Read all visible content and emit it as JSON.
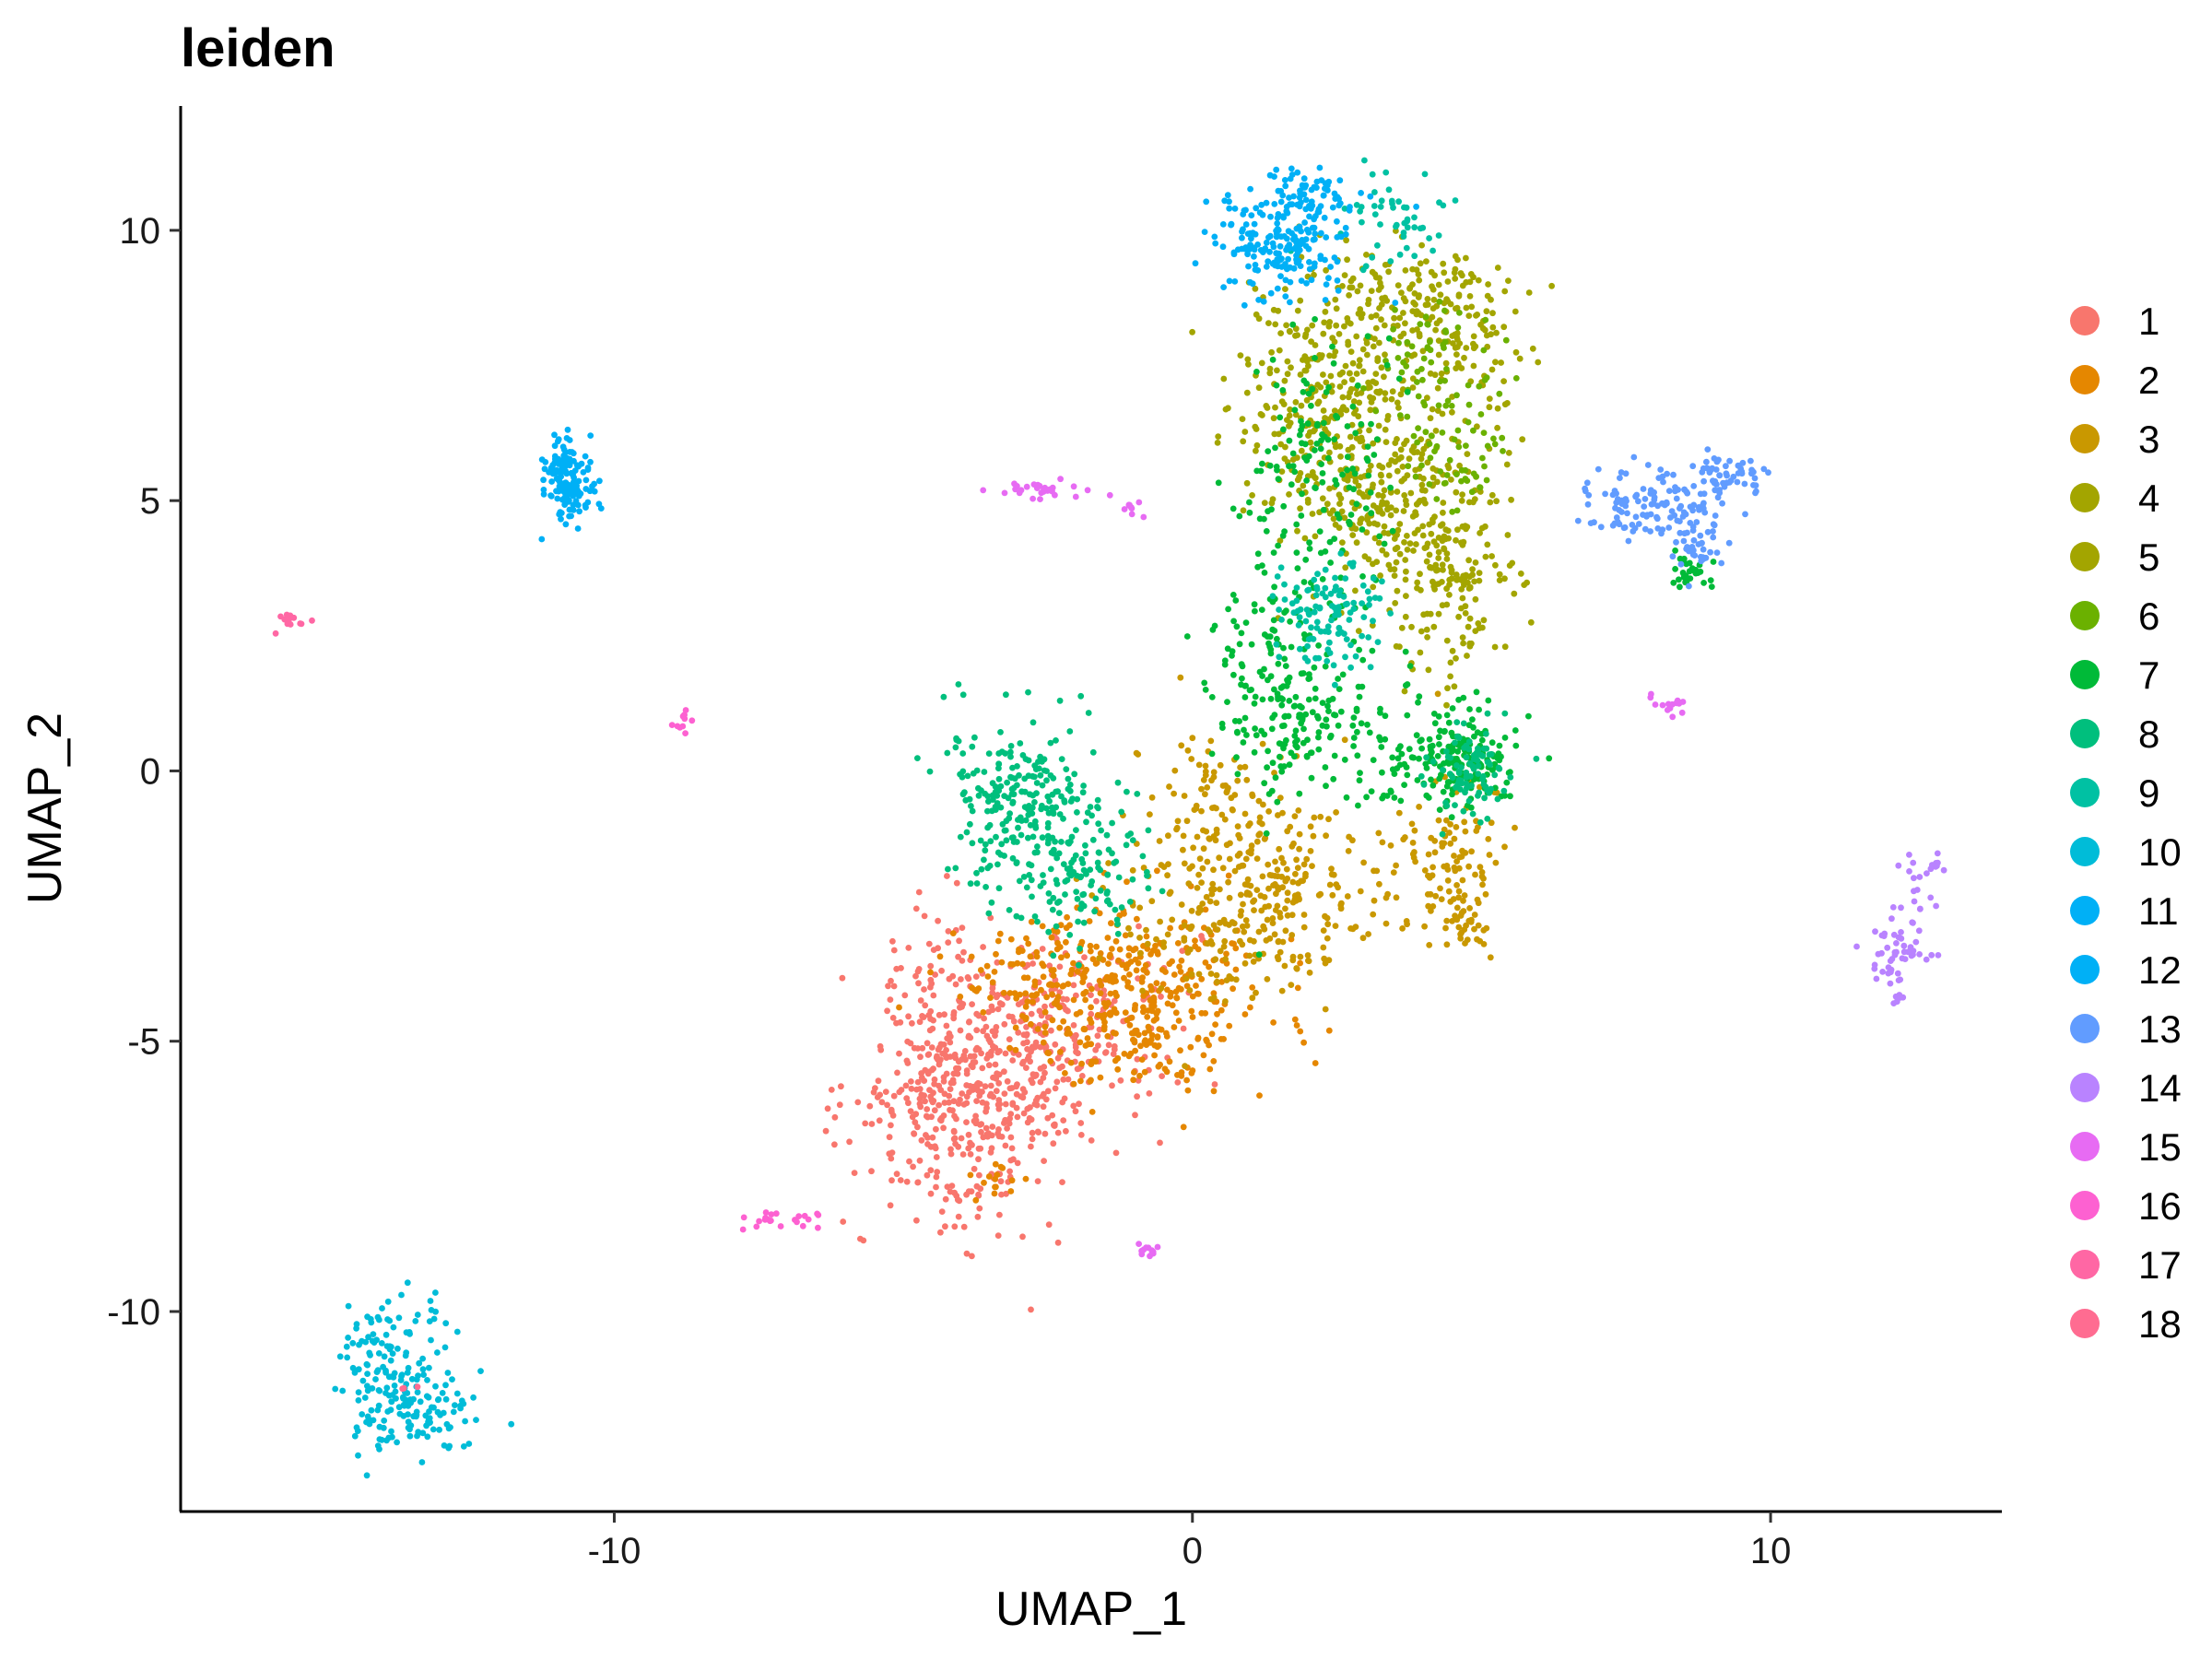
{
  "chart_data": {
    "type": "scatter",
    "title": "leiden",
    "xlabel": "UMAP_1",
    "ylabel": "UMAP_2",
    "xlim": [
      -17.5,
      14
    ],
    "ylim": [
      -13.7,
      12.3
    ],
    "xticks": [
      -10,
      0,
      10
    ],
    "xtick_labels": [
      "-10",
      "0",
      "10"
    ],
    "yticks": [
      -10,
      -5,
      0,
      5,
      10
    ],
    "ytick_labels": [
      "-10",
      "-5",
      "0",
      "5",
      "10"
    ],
    "grid": false,
    "legend_position": "right",
    "series": [
      {
        "name": "1",
        "color": "#F8766D",
        "clusters": [
          {
            "cx": -4.0,
            "cy": -6.3,
            "sx": 0.9,
            "sy": 1.0,
            "n": 360
          },
          {
            "cx": -2.6,
            "cy": -4.9,
            "sx": 1.1,
            "sy": 0.9,
            "n": 300
          },
          {
            "cx": -4.6,
            "cy": -4.2,
            "sx": 0.35,
            "sy": 0.9,
            "n": 60
          }
        ]
      },
      {
        "name": "2",
        "color": "#E58700",
        "clusters": [
          {
            "cx": -0.9,
            "cy": -4.2,
            "sx": 1.1,
            "sy": 0.9,
            "n": 320
          },
          {
            "cx": -2.4,
            "cy": -3.8,
            "sx": 1.0,
            "sy": 0.5,
            "n": 120
          },
          {
            "cx": -3.3,
            "cy": -7.6,
            "sx": 0.25,
            "sy": 0.2,
            "n": 15
          }
        ]
      },
      {
        "name": "3",
        "color": "#C99800",
        "clusters": [
          {
            "cx": 1.1,
            "cy": -2.4,
            "sx": 1.1,
            "sy": 0.9,
            "n": 320
          },
          {
            "cx": 0.4,
            "cy": -0.5,
            "sx": 0.6,
            "sy": 0.7,
            "n": 80
          },
          {
            "cx": 4.5,
            "cy": -1.6,
            "sx": 0.45,
            "sy": 0.8,
            "n": 110
          },
          {
            "cx": 4.7,
            "cy": -2.9,
            "sx": 0.2,
            "sy": 0.2,
            "n": 20
          }
        ]
      },
      {
        "name": "4",
        "color": "#A3A500",
        "clusters": [
          {
            "cx": 2.5,
            "cy": 7.2,
            "sx": 0.9,
            "sy": 1.0,
            "n": 280
          },
          {
            "cx": 3.8,
            "cy": 8.6,
            "sx": 0.8,
            "sy": 0.5,
            "n": 150
          }
        ]
      },
      {
        "name": "5",
        "color": "#A3A500",
        "clusters": [
          {
            "cx": 3.2,
            "cy": 5.1,
            "sx": 0.9,
            "sy": 0.8,
            "n": 250
          },
          {
            "cx": 4.4,
            "cy": 3.4,
            "sx": 0.6,
            "sy": 0.9,
            "n": 170
          },
          {
            "cx": 4.9,
            "cy": 7.8,
            "sx": 0.4,
            "sy": 0.8,
            "n": 60
          }
        ]
      },
      {
        "name": "6",
        "color": "#6BB100",
        "clusters": [
          {
            "cx": 4.2,
            "cy": 7.6,
            "sx": 0.5,
            "sy": 0.6,
            "n": 60
          },
          {
            "cx": 4.6,
            "cy": 5.8,
            "sx": 0.4,
            "sy": 0.5,
            "n": 50
          }
        ]
      },
      {
        "name": "7",
        "color": "#00BA38",
        "clusters": [
          {
            "cx": 1.5,
            "cy": 1.4,
            "sx": 0.6,
            "sy": 1.0,
            "n": 200
          },
          {
            "cx": 2.2,
            "cy": 5.4,
            "sx": 0.6,
            "sy": 1.2,
            "n": 160
          },
          {
            "cx": 4.6,
            "cy": 0.2,
            "sx": 0.5,
            "sy": 0.5,
            "n": 160
          },
          {
            "cx": 8.6,
            "cy": 3.7,
            "sx": 0.2,
            "sy": 0.15,
            "n": 30
          },
          {
            "cx": 3.1,
            "cy": 0.5,
            "sx": 0.6,
            "sy": 0.6,
            "n": 60
          }
        ]
      },
      {
        "name": "8",
        "color": "#00BF7D",
        "clusters": [
          {
            "cx": -2.9,
            "cy": -0.6,
            "sx": 0.7,
            "sy": 0.8,
            "n": 240
          },
          {
            "cx": -1.9,
            "cy": -2.0,
            "sx": 0.6,
            "sy": 0.6,
            "n": 110
          },
          {
            "cx": 4.8,
            "cy": -0.1,
            "sx": 0.3,
            "sy": 0.4,
            "n": 90
          }
        ]
      },
      {
        "name": "9",
        "color": "#00C1A3",
        "clusters": [
          {
            "cx": 2.4,
            "cy": 3.0,
            "sx": 0.5,
            "sy": 0.5,
            "n": 110
          },
          {
            "cx": 3.4,
            "cy": 10.3,
            "sx": 0.5,
            "sy": 0.4,
            "n": 50
          }
        ]
      },
      {
        "name": "10",
        "color": "#00BCD8",
        "clusters": [
          {
            "cx": -13.6,
            "cy": -11.8,
            "sx": 0.55,
            "sy": 0.5,
            "n": 150
          },
          {
            "cx": -13.6,
            "cy": -10.4,
            "sx": 0.5,
            "sy": 0.4,
            "n": 40
          },
          {
            "cx": -14.0,
            "cy": -11.0,
            "sx": 0.25,
            "sy": 0.5,
            "n": 30
          }
        ]
      },
      {
        "name": "11",
        "color": "#00B0F6",
        "clusters": [
          {
            "cx": 1.6,
            "cy": 9.8,
            "sx": 0.6,
            "sy": 0.5,
            "n": 200
          },
          {
            "cx": 2.1,
            "cy": 10.7,
            "sx": 0.35,
            "sy": 0.2,
            "n": 50
          }
        ]
      },
      {
        "name": "12",
        "color": "#00B0F6",
        "clusters": [
          {
            "cx": -10.8,
            "cy": 5.4,
            "sx": 0.2,
            "sy": 0.4,
            "n": 160
          }
        ]
      },
      {
        "name": "13",
        "color": "#619CFF",
        "clusters": [
          {
            "cx": 8.1,
            "cy": 4.9,
            "sx": 0.6,
            "sy": 0.3,
            "n": 130
          },
          {
            "cx": 9.2,
            "cy": 5.5,
            "sx": 0.4,
            "sy": 0.2,
            "n": 50
          },
          {
            "cx": 8.7,
            "cy": 4.0,
            "sx": 0.2,
            "sy": 0.25,
            "n": 30
          }
        ]
      },
      {
        "name": "14",
        "color": "#B983FF",
        "clusters": [
          {
            "cx": 12.2,
            "cy": -3.3,
            "sx": 0.25,
            "sy": 0.3,
            "n": 50
          },
          {
            "cx": 12.5,
            "cy": -2.2,
            "sx": 0.15,
            "sy": 0.3,
            "n": 15
          },
          {
            "cx": 12.8,
            "cy": -1.7,
            "sx": 0.1,
            "sy": 0.1,
            "n": 8
          },
          {
            "cx": 12.2,
            "cy": -4.2,
            "sx": 0.08,
            "sy": 0.08,
            "n": 5
          }
        ]
      },
      {
        "name": "15",
        "color": "#E76BF3",
        "clusters": [
          {
            "cx": -2.8,
            "cy": 5.2,
            "sx": 0.35,
            "sy": 0.08,
            "n": 28
          },
          {
            "cx": -1.1,
            "cy": 4.9,
            "sx": 0.12,
            "sy": 0.08,
            "n": 10
          },
          {
            "cx": -0.8,
            "cy": -8.9,
            "sx": 0.1,
            "sy": 0.06,
            "n": 12
          },
          {
            "cx": 8.2,
            "cy": 1.2,
            "sx": 0.22,
            "sy": 0.08,
            "n": 14
          }
        ]
      },
      {
        "name": "16",
        "color": "#FD61D1",
        "clusters": [
          {
            "cx": -7.0,
            "cy": -8.3,
            "sx": 0.35,
            "sy": 0.1,
            "n": 22
          },
          {
            "cx": -8.8,
            "cy": 0.9,
            "sx": 0.12,
            "sy": 0.12,
            "n": 12
          }
        ]
      },
      {
        "name": "17",
        "color": "#FF67A4",
        "clusters": [
          {
            "cx": -15.6,
            "cy": 2.8,
            "sx": 0.15,
            "sy": 0.1,
            "n": 12
          }
        ]
      },
      {
        "name": "18",
        "color": "#FF6C91",
        "clusters": [
          {
            "cx": -13.6,
            "cy": -11.5,
            "sx": 0.1,
            "sy": 0.1,
            "n": 3
          }
        ]
      }
    ]
  }
}
